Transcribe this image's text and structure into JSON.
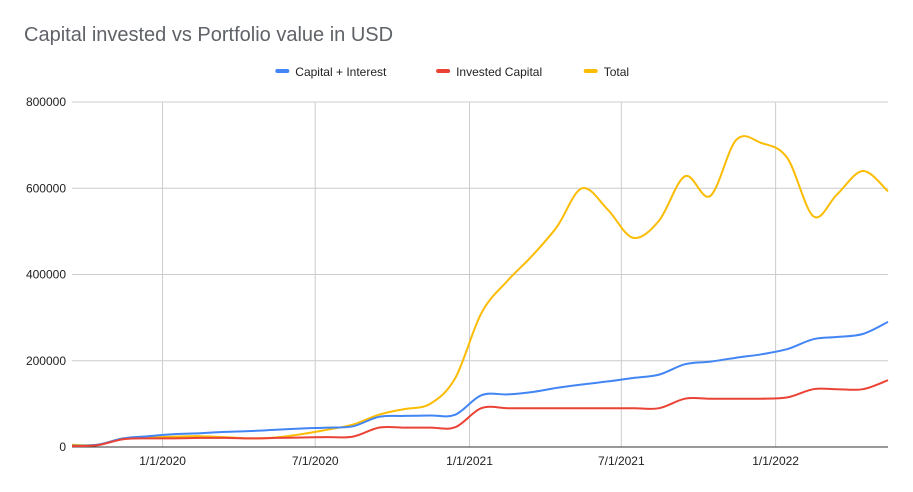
{
  "chart_data": {
    "type": "line",
    "title": "Capital invested vs Portfolio value in USD",
    "xlabel": "",
    "ylabel": "",
    "x_range": [
      "2019-09-15",
      "2022-05-15"
    ],
    "ylim": [
      0,
      800000
    ],
    "y_ticks": [
      0,
      200000,
      400000,
      600000,
      800000
    ],
    "y_tick_labels": [
      "0",
      "200000",
      "400000",
      "600000",
      "800000"
    ],
    "x_ticks": [
      "2020-01-01",
      "2020-07-01",
      "2021-01-01",
      "2021-07-01",
      "2022-01-01"
    ],
    "x_tick_labels": [
      "1/1/2020",
      "7/1/2020",
      "1/1/2021",
      "7/1/2021",
      "1/1/2022"
    ],
    "grid": true,
    "legend_position": "top",
    "series": [
      {
        "name": "Capital + Interest",
        "color": "#4285f4",
        "points": [
          [
            "2019-09-15",
            3000
          ],
          [
            "2019-10-15",
            5000
          ],
          [
            "2019-11-15",
            20000
          ],
          [
            "2019-12-15",
            25000
          ],
          [
            "2020-01-15",
            30000
          ],
          [
            "2020-02-15",
            32000
          ],
          [
            "2020-03-15",
            35000
          ],
          [
            "2020-04-15",
            37000
          ],
          [
            "2020-05-15",
            40000
          ],
          [
            "2020-06-15",
            43000
          ],
          [
            "2020-07-15",
            45000
          ],
          [
            "2020-08-15",
            48000
          ],
          [
            "2020-09-15",
            70000
          ],
          [
            "2020-10-15",
            72000
          ],
          [
            "2020-11-15",
            73000
          ],
          [
            "2020-12-15",
            75000
          ],
          [
            "2021-01-15",
            120000
          ],
          [
            "2021-02-15",
            122000
          ],
          [
            "2021-03-15",
            127000
          ],
          [
            "2021-04-15",
            137000
          ],
          [
            "2021-05-15",
            145000
          ],
          [
            "2021-06-15",
            152000
          ],
          [
            "2021-07-15",
            160000
          ],
          [
            "2021-08-15",
            168000
          ],
          [
            "2021-09-15",
            192000
          ],
          [
            "2021-10-15",
            198000
          ],
          [
            "2021-11-15",
            207000
          ],
          [
            "2021-12-15",
            215000
          ],
          [
            "2022-01-15",
            227000
          ],
          [
            "2022-02-15",
            250000
          ],
          [
            "2022-03-15",
            255000
          ],
          [
            "2022-04-15",
            262000
          ],
          [
            "2022-05-15",
            290000
          ]
        ]
      },
      {
        "name": "Invested Capital",
        "color": "#ea4335",
        "points": [
          [
            "2019-09-15",
            2000
          ],
          [
            "2019-10-15",
            4000
          ],
          [
            "2019-11-15",
            18000
          ],
          [
            "2019-12-15",
            20000
          ],
          [
            "2020-01-15",
            20000
          ],
          [
            "2020-02-15",
            21000
          ],
          [
            "2020-03-15",
            21000
          ],
          [
            "2020-04-15",
            20000
          ],
          [
            "2020-05-15",
            21000
          ],
          [
            "2020-06-15",
            22000
          ],
          [
            "2020-07-15",
            23000
          ],
          [
            "2020-08-15",
            24000
          ],
          [
            "2020-09-15",
            45000
          ],
          [
            "2020-10-15",
            45000
          ],
          [
            "2020-11-15",
            45000
          ],
          [
            "2020-12-15",
            46000
          ],
          [
            "2021-01-15",
            90000
          ],
          [
            "2021-02-15",
            90000
          ],
          [
            "2021-03-15",
            90000
          ],
          [
            "2021-04-15",
            90000
          ],
          [
            "2021-05-15",
            90000
          ],
          [
            "2021-06-15",
            90000
          ],
          [
            "2021-07-15",
            90000
          ],
          [
            "2021-08-15",
            90000
          ],
          [
            "2021-09-15",
            112000
          ],
          [
            "2021-10-15",
            112000
          ],
          [
            "2021-11-15",
            112000
          ],
          [
            "2021-12-15",
            112000
          ],
          [
            "2022-01-15",
            115000
          ],
          [
            "2022-02-15",
            134000
          ],
          [
            "2022-03-15",
            134000
          ],
          [
            "2022-04-15",
            134000
          ],
          [
            "2022-05-15",
            155000
          ]
        ]
      },
      {
        "name": "Total",
        "color": "#fbbc04",
        "points": [
          [
            "2019-09-15",
            5000
          ],
          [
            "2019-10-15",
            5000
          ],
          [
            "2019-11-15",
            20000
          ],
          [
            "2019-12-15",
            22000
          ],
          [
            "2020-01-15",
            24000
          ],
          [
            "2020-02-15",
            25000
          ],
          [
            "2020-03-15",
            23000
          ],
          [
            "2020-04-15",
            20000
          ],
          [
            "2020-05-15",
            22000
          ],
          [
            "2020-06-15",
            30000
          ],
          [
            "2020-07-15",
            40000
          ],
          [
            "2020-08-15",
            52000
          ],
          [
            "2020-09-15",
            75000
          ],
          [
            "2020-10-15",
            88000
          ],
          [
            "2020-11-15",
            100000
          ],
          [
            "2020-12-15",
            160000
          ],
          [
            "2021-01-15",
            310000
          ],
          [
            "2021-02-15",
            385000
          ],
          [
            "2021-03-15",
            440000
          ],
          [
            "2021-04-15",
            510000
          ],
          [
            "2021-05-15",
            600000
          ],
          [
            "2021-06-15",
            550000
          ],
          [
            "2021-07-15",
            485000
          ],
          [
            "2021-08-15",
            525000
          ],
          [
            "2021-09-15",
            628000
          ],
          [
            "2021-10-15",
            582000
          ],
          [
            "2021-11-15",
            712000
          ],
          [
            "2021-12-15",
            705000
          ],
          [
            "2022-01-15",
            670000
          ],
          [
            "2022-02-15",
            535000
          ],
          [
            "2022-03-15",
            585000
          ],
          [
            "2022-04-15",
            640000
          ],
          [
            "2022-05-15",
            593000
          ]
        ]
      }
    ]
  }
}
